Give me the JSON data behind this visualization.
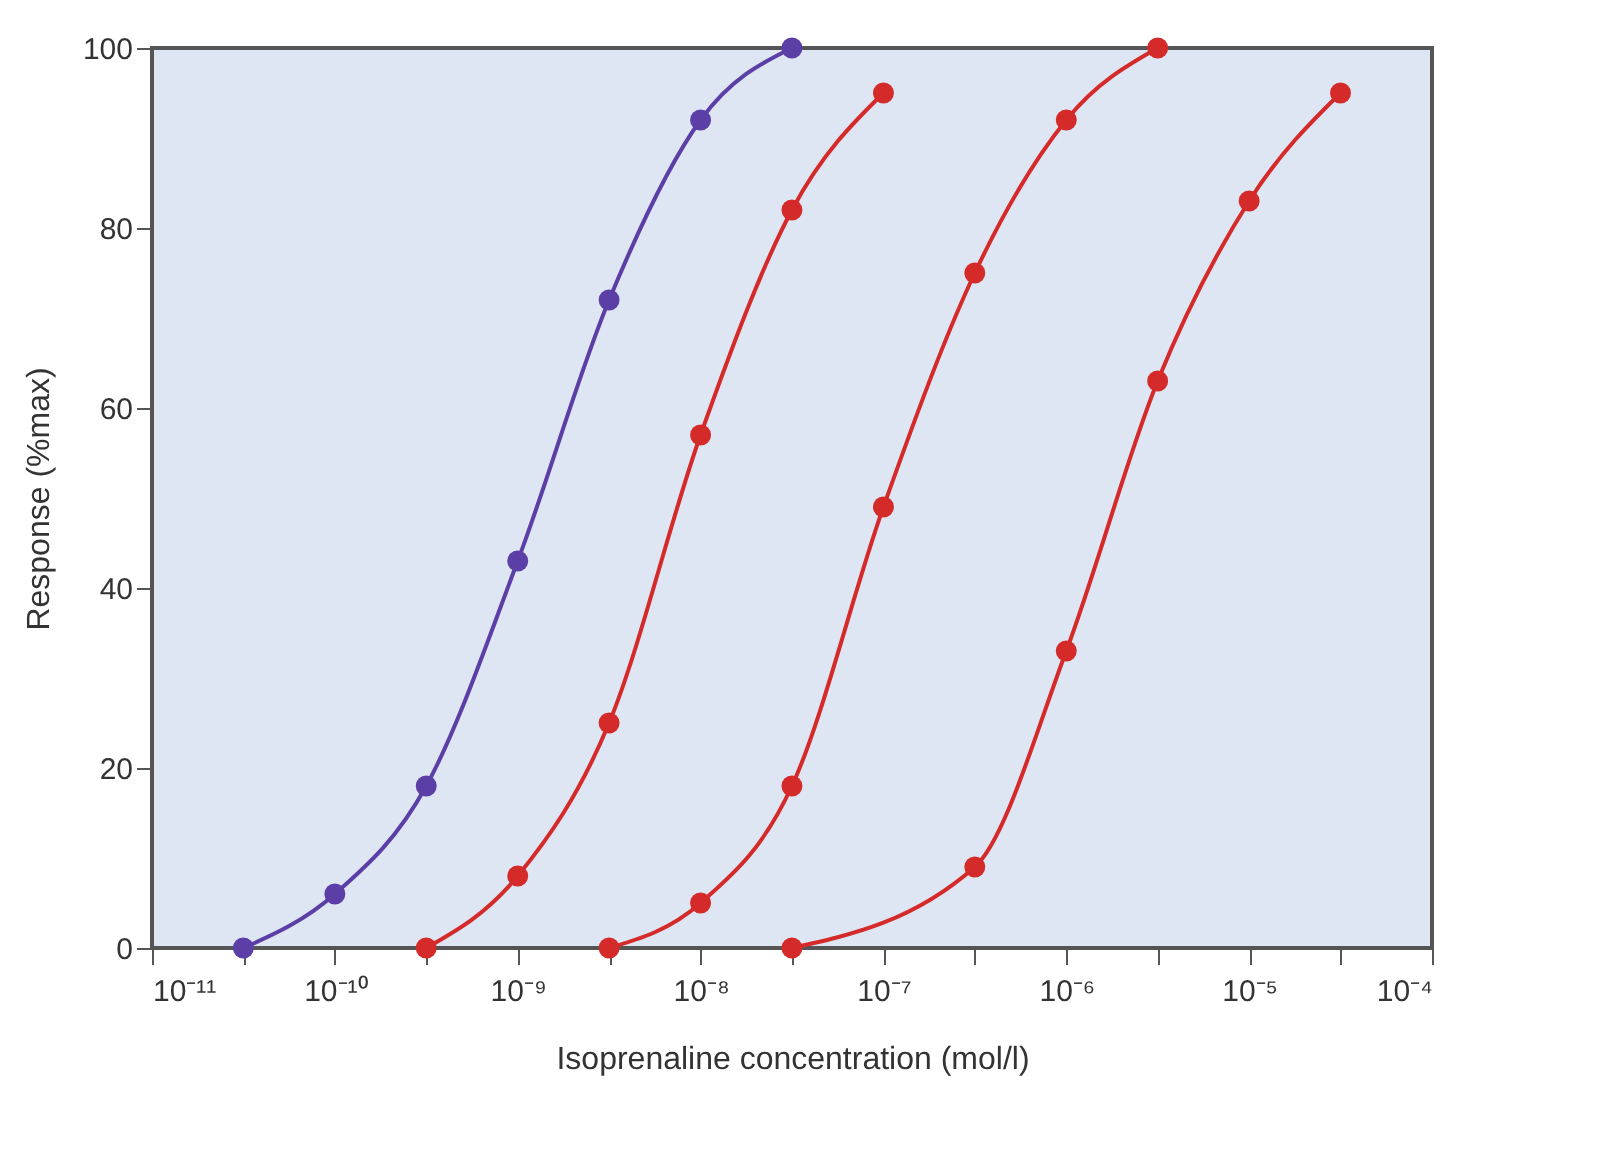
{
  "chart_data": {
    "type": "line",
    "xlabel": "Isoprenaline concentration (mol/l)",
    "ylabel": "Response (%max)",
    "log": "x",
    "grid": false,
    "marker": "circle",
    "line_style": "solid",
    "xlim": [
      1e-11,
      0.0001
    ],
    "ylim": [
      0,
      100
    ],
    "xticks": [
      {
        "value": 1e-11,
        "label": "10⁻¹¹"
      },
      {
        "value": 3.16e-11,
        "label": null
      },
      {
        "value": 1e-10,
        "label": "10⁻¹⁰"
      },
      {
        "value": 3.16e-10,
        "label": null
      },
      {
        "value": 1e-09,
        "label": "10⁻⁹"
      },
      {
        "value": 3.16e-09,
        "label": null
      },
      {
        "value": 1e-08,
        "label": "10⁻⁸"
      },
      {
        "value": 3.16e-08,
        "label": null
      },
      {
        "value": 1e-07,
        "label": "10⁻⁷"
      },
      {
        "value": 3.16e-07,
        "label": null
      },
      {
        "value": 1e-06,
        "label": "10⁻⁶"
      },
      {
        "value": 3.16e-06,
        "label": null
      },
      {
        "value": 1e-05,
        "label": "10⁻⁵"
      },
      {
        "value": 3.16e-05,
        "label": null
      },
      {
        "value": 0.0001,
        "label": "10⁻⁴"
      }
    ],
    "yticks": [
      0,
      20,
      40,
      60,
      80,
      100
    ],
    "series": [
      {
        "color": "#5b3fa6",
        "x": [
          3.16e-11,
          1e-10,
          3.16e-10,
          1e-09,
          3.16e-09,
          1e-08,
          3.16e-08
        ],
        "values": [
          0,
          6,
          18,
          43,
          72,
          92,
          100
        ]
      },
      {
        "color": "#d42a2a",
        "x": [
          3.16e-10,
          1e-09,
          3.16e-09,
          1e-08,
          3.16e-08,
          1e-07
        ],
        "values": [
          0,
          8,
          25,
          57,
          82,
          95
        ]
      },
      {
        "color": "#d42a2a",
        "x": [
          3.16e-09,
          1e-08,
          3.16e-08,
          1e-07,
          3.16e-07,
          1e-06,
          3.16e-06
        ],
        "values": [
          0,
          5,
          18,
          49,
          75,
          92,
          100
        ]
      },
      {
        "color": "#d42a2a",
        "x": [
          3.16e-08,
          3.16e-07,
          1e-06,
          3.16e-06,
          1e-05,
          3.16e-05
        ],
        "values": [
          0,
          9,
          33,
          63,
          83,
          95
        ]
      }
    ]
  }
}
